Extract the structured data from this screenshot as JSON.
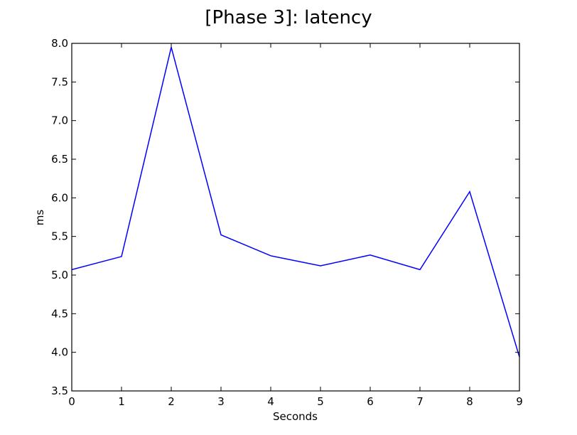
{
  "chart_data": {
    "type": "line",
    "title": "[Phase 3]: latency",
    "xlabel": "Seconds",
    "ylabel": "ms",
    "xlim": [
      0,
      9
    ],
    "ylim": [
      3.5,
      8.0
    ],
    "x_ticks": [
      "0",
      "1",
      "2",
      "3",
      "4",
      "5",
      "6",
      "7",
      "8",
      "9"
    ],
    "y_ticks": [
      "3.5",
      "4.0",
      "4.5",
      "5.0",
      "5.5",
      "6.0",
      "6.5",
      "7.0",
      "7.5",
      "8.0"
    ],
    "grid": false,
    "series": [
      {
        "color": "#0000ff",
        "x": [
          0,
          1,
          2,
          3,
          4,
          5,
          6,
          7,
          8,
          9
        ],
        "y": [
          5.07,
          5.24,
          7.95,
          5.52,
          5.25,
          5.12,
          5.26,
          5.07,
          6.08,
          3.94
        ]
      }
    ]
  }
}
